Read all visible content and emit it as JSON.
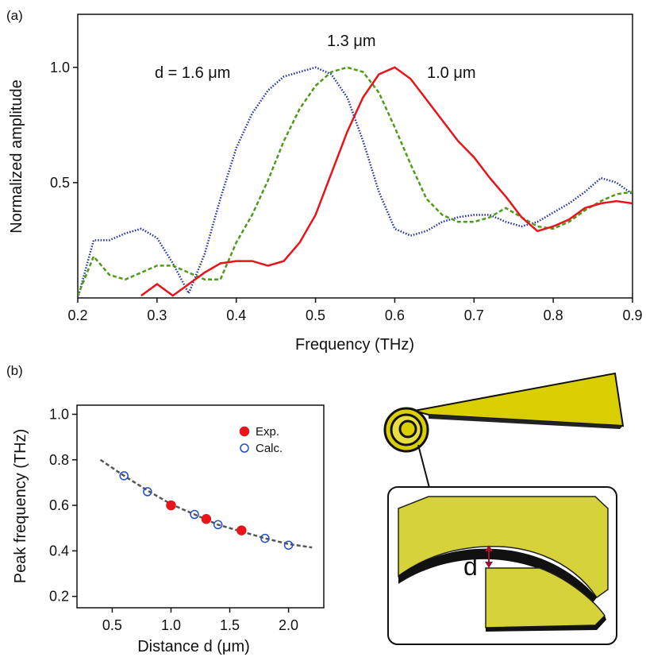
{
  "chart_data": [
    {
      "type": "line",
      "panel_label": "(a)",
      "x_label": "Frequency (THz)",
      "y_label": "Normalized  amplitude",
      "xlim": [
        0.2,
        0.9
      ],
      "ylim": [
        0,
        1.23
      ],
      "xticks": [
        0.2,
        0.3,
        0.4,
        0.5,
        0.6,
        0.7,
        0.8,
        0.9
      ],
      "yticks": [
        0.5,
        {
          "value": 1,
          "label": "1.0"
        }
      ],
      "grid": false,
      "x": [
        0.2,
        0.22,
        0.24,
        0.26,
        0.28,
        0.3,
        0.32,
        0.34,
        0.36,
        0.38,
        0.4,
        0.42,
        0.44,
        0.46,
        0.48,
        0.5,
        0.52,
        0.54,
        0.56,
        0.58,
        0.6,
        0.62,
        0.64,
        0.66,
        0.68,
        0.7,
        0.72,
        0.74,
        0.76,
        0.78,
        0.8,
        0.82,
        0.84,
        0.86,
        0.88,
        0.9
      ],
      "series": [
        {
          "name": "d = 1.6 μm",
          "color": "#1f2fa8",
          "style": "dotted",
          "values": [
            0.0,
            0.25,
            0.25,
            0.28,
            0.3,
            0.26,
            0.15,
            0.02,
            0.19,
            0.43,
            0.65,
            0.8,
            0.9,
            0.96,
            0.98,
            1.0,
            0.97,
            0.87,
            0.68,
            0.46,
            0.3,
            0.27,
            0.29,
            0.33,
            0.35,
            0.36,
            0.36,
            0.33,
            0.31,
            0.33,
            0.37,
            0.41,
            0.46,
            0.52,
            0.5,
            0.45
          ]
        },
        {
          "name": "1.3 μm",
          "color": "#4e9a1a",
          "style": "dashed",
          "values": [
            0.01,
            0.18,
            0.1,
            0.08,
            0.11,
            0.14,
            0.14,
            0.11,
            0.08,
            0.08,
            0.24,
            0.36,
            0.51,
            0.68,
            0.82,
            0.92,
            0.98,
            1.0,
            0.98,
            0.89,
            0.74,
            0.58,
            0.43,
            0.36,
            0.33,
            0.33,
            0.35,
            0.39,
            0.35,
            0.31,
            0.3,
            0.33,
            0.38,
            0.42,
            0.45,
            0.46
          ]
        },
        {
          "name": "1.0 μm",
          "color": "#e8141c",
          "style": "solid",
          "values": [
            null,
            null,
            null,
            null,
            0.01,
            0.06,
            0.01,
            0.06,
            0.11,
            0.15,
            0.16,
            0.16,
            0.14,
            0.16,
            0.24,
            0.36,
            0.54,
            0.72,
            0.87,
            0.97,
            1.0,
            0.95,
            0.86,
            0.77,
            0.68,
            0.61,
            0.52,
            0.44,
            0.35,
            0.29,
            0.31,
            0.34,
            0.39,
            0.41,
            0.42,
            0.41
          ]
        }
      ]
    },
    {
      "type": "scatter",
      "panel_label": "(b)",
      "x_label": "Distance d (μm)",
      "y_label": "Peak frequency  (THz)",
      "xlim": [
        0.2,
        2.3
      ],
      "ylim": [
        0.15,
        1.04
      ],
      "xticks": [
        0.5,
        {
          "value": 1,
          "label": "1.0"
        },
        1.5,
        {
          "value": 2,
          "label": "2.0"
        }
      ],
      "yticks": [
        0.2,
        0.4,
        0.6,
        0.8,
        {
          "value": 1,
          "label": "1.0"
        }
      ],
      "grid": false,
      "legend": "upper right",
      "fit": {
        "color": "#555555",
        "style": "dashed",
        "x": [
          0.4,
          0.6,
          0.8,
          1.0,
          1.2,
          1.4,
          1.6,
          1.8,
          2.0,
          2.2
        ],
        "values": [
          0.8,
          0.73,
          0.665,
          0.605,
          0.56,
          0.515,
          0.485,
          0.455,
          0.43,
          0.415
        ]
      },
      "series": [
        {
          "name": "Calc.",
          "color": "#1f4fd0",
          "marker": "open",
          "x": [
            0.6,
            0.8,
            1.0,
            1.2,
            1.3,
            1.4,
            1.6,
            1.8,
            2.0
          ],
          "values": [
            0.73,
            0.66,
            0.6,
            0.56,
            0.54,
            0.515,
            0.49,
            0.455,
            0.425
          ]
        },
        {
          "name": "Exp.",
          "color": "#e8141c",
          "marker": "filled",
          "x": [
            1.0,
            1.3,
            1.6
          ],
          "values": [
            0.6,
            0.54,
            0.49
          ]
        }
      ]
    }
  ],
  "diagram": {
    "label": "d"
  }
}
